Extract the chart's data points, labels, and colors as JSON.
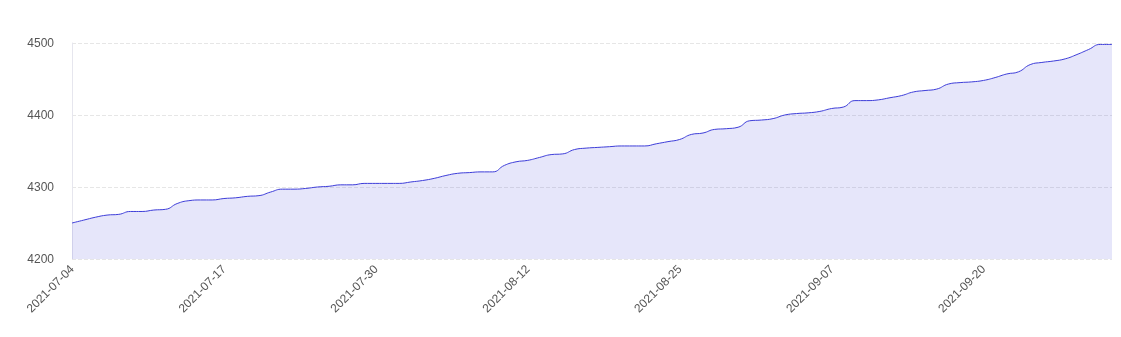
{
  "chart_data": {
    "type": "area",
    "x": [
      "2021-07-04",
      "2021-07-05",
      "2021-07-06",
      "2021-07-07",
      "2021-07-08",
      "2021-07-09",
      "2021-07-10",
      "2021-07-11",
      "2021-07-12",
      "2021-07-13",
      "2021-07-14",
      "2021-07-15",
      "2021-07-16",
      "2021-07-17",
      "2021-07-18",
      "2021-07-19",
      "2021-07-20",
      "2021-07-21",
      "2021-07-22",
      "2021-07-23",
      "2021-07-24",
      "2021-07-25",
      "2021-07-26",
      "2021-07-27",
      "2021-07-28",
      "2021-07-29",
      "2021-07-30",
      "2021-07-31",
      "2021-08-01",
      "2021-08-02",
      "2021-08-03",
      "2021-08-04",
      "2021-08-05",
      "2021-08-06",
      "2021-08-07",
      "2021-08-08",
      "2021-08-09",
      "2021-08-10",
      "2021-08-11",
      "2021-08-12",
      "2021-08-13",
      "2021-08-14",
      "2021-08-15",
      "2021-08-16",
      "2021-08-17",
      "2021-08-18",
      "2021-08-19",
      "2021-08-20",
      "2021-08-21",
      "2021-08-22",
      "2021-08-23",
      "2021-08-24",
      "2021-08-25",
      "2021-08-26",
      "2021-08-27",
      "2021-08-28",
      "2021-08-29",
      "2021-08-30",
      "2021-08-31",
      "2021-09-01",
      "2021-09-02",
      "2021-09-03",
      "2021-09-04",
      "2021-09-05",
      "2021-09-06",
      "2021-09-07",
      "2021-09-08",
      "2021-09-09",
      "2021-09-10",
      "2021-09-11",
      "2021-09-12",
      "2021-09-13",
      "2021-09-14",
      "2021-09-15",
      "2021-09-16",
      "2021-09-17",
      "2021-09-18",
      "2021-09-19",
      "2021-09-20",
      "2021-09-21",
      "2021-09-22",
      "2021-09-23",
      "2021-09-24",
      "2021-09-25",
      "2021-09-26",
      "2021-09-27",
      "2021-09-28",
      "2021-09-29",
      "2021-09-30",
      "2021-10-01"
    ],
    "series": [
      {
        "color": "#3d3dd8",
        "values": [
          4250,
          4254,
          4258,
          4261,
          4262,
          4266,
          4266,
          4268,
          4269,
          4277,
          4281,
          4282,
          4282,
          4284,
          4285,
          4287,
          4288,
          4293,
          4297,
          4297,
          4298,
          4300,
          4301,
          4303,
          4303,
          4305,
          4305,
          4305,
          4305,
          4307,
          4309,
          4312,
          4316,
          4319,
          4320,
          4321,
          4321,
          4330,
          4335,
          4337,
          4341,
          4345,
          4346,
          4352,
          4354,
          4355,
          4356,
          4357,
          4357,
          4357,
          4360,
          4363,
          4366,
          4373,
          4375,
          4380,
          4381,
          4383,
          4392,
          4393,
          4395,
          4400,
          4402,
          4403,
          4405,
          4409,
          4411,
          4420,
          4420,
          4421,
          4424,
          4427,
          4432,
          4434,
          4436,
          4443,
          4445,
          4446,
          4448,
          4452,
          4457,
          4460,
          4470,
          4473,
          4475,
          4478,
          4484,
          4491,
          4498,
          4498
        ]
      }
    ],
    "xlim": [
      "2021-07-04",
      "2021-10-01"
    ],
    "xticks": [
      "2021-07-04",
      "2021-07-17",
      "2021-07-30",
      "2021-08-12",
      "2021-08-25",
      "2021-09-07",
      "2021-09-20"
    ],
    "ylim": [
      4200,
      4500
    ],
    "yticks": [
      4200,
      4300,
      4400,
      4500
    ],
    "grid": "y",
    "marker": "none"
  }
}
